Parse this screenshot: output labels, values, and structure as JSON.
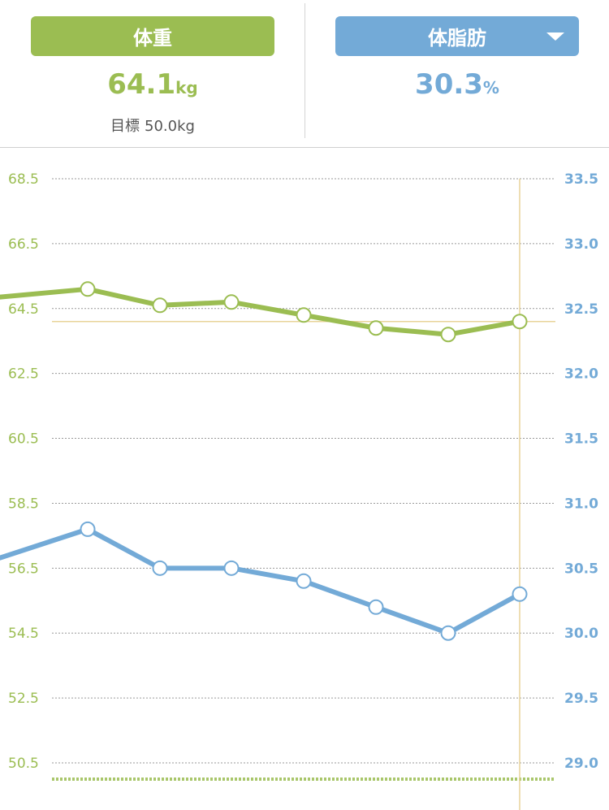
{
  "header": {
    "weight_tab": {
      "label": "体重",
      "value": "64.1",
      "unit": "kg"
    },
    "fat_tab": {
      "label": "体脂肪",
      "value": "30.3",
      "unit": "%",
      "dropdown_icon": "caret-down-icon"
    },
    "goal": {
      "label": "目標",
      "value": "50.0kg"
    }
  },
  "colors": {
    "weight": "#9bbd52",
    "fat": "#73aad7",
    "grid": "#9a9a9a",
    "current_marker": "#e8d49a"
  },
  "chart_data": {
    "type": "line",
    "x_index": [
      0,
      1,
      2,
      3,
      4,
      5,
      6,
      7
    ],
    "left_axis": {
      "range": [
        50.5,
        68.5
      ],
      "ticks": [
        "68.5",
        "66.5",
        "64.5",
        "62.5",
        "60.5",
        "58.5",
        "56.5",
        "54.5",
        "52.5",
        "50.5"
      ]
    },
    "right_axis": {
      "range": [
        29.0,
        33.5
      ],
      "ticks": [
        "33.5",
        "33.0",
        "32.5",
        "32.0",
        "31.5",
        "31.0",
        "30.5",
        "30.0",
        "29.5",
        "29.0"
      ]
    },
    "goal_line": 50.0,
    "current_index": 7,
    "series": [
      {
        "axis": "left",
        "values": [
          64.9,
          65.1,
          64.6,
          64.7,
          64.3,
          63.9,
          63.7,
          64.1
        ]
      },
      {
        "axis": "right",
        "values": [
          30.62,
          30.8,
          30.5,
          30.5,
          30.4,
          30.2,
          30.0,
          30.3
        ]
      }
    ],
    "grid": true
  }
}
